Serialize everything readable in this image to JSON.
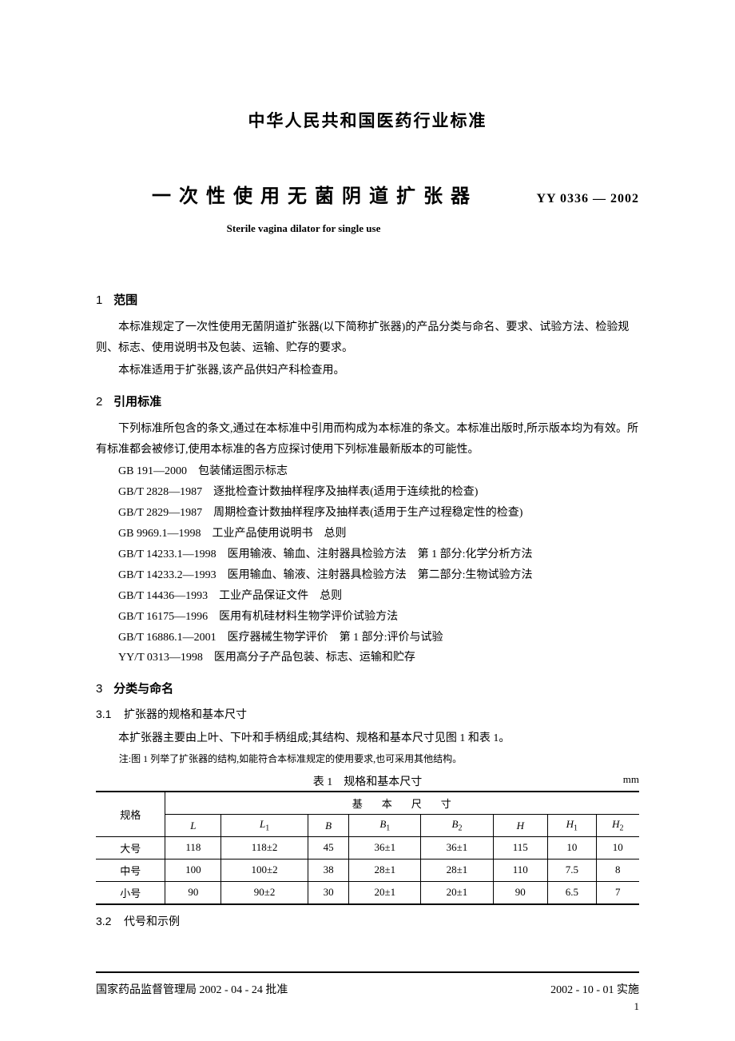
{
  "header": {
    "org_title": "中华人民共和国医药行业标准",
    "main_title": "一次性使用无菌阴道扩张器",
    "standard_code": "YY  0336 — 2002",
    "subtitle_en": "Sterile vagina dilator for single use"
  },
  "section1": {
    "num": "1",
    "label": "范围",
    "p1": "本标准规定了一次性使用无菌阴道扩张器(以下简称扩张器)的产品分类与命名、要求、试验方法、检验规则、标志、使用说明书及包装、运输、贮存的要求。",
    "p2": "本标准适用于扩张器,该产品供妇产科检查用。"
  },
  "section2": {
    "num": "2",
    "label": "引用标准",
    "intro": "下列标准所包含的条文,通过在本标准中引用而构成为本标准的条文。本标准出版时,所示版本均为有效。所有标准都会被修订,使用本标准的各方应探讨使用下列标准最新版本的可能性。",
    "refs": [
      "GB 191—2000　包装储运图示标志",
      "GB/T 2828—1987　逐批检查计数抽样程序及抽样表(适用于连续批的检查)",
      "GB/T 2829—1987　周期检查计数抽样程序及抽样表(适用于生产过程稳定性的检查)",
      "GB 9969.1—1998　工业产品使用说明书　总则",
      "GB/T 14233.1—1998　医用输液、输血、注射器具检验方法　第 1 部分:化学分析方法",
      "GB/T 14233.2—1993　医用输血、输液、注射器具检验方法　第二部分:生物试验方法",
      "GB/T 14436—1993　工业产品保证文件　总则",
      "GB/T 16175—1996　医用有机硅材料生物学评价试验方法",
      "GB/T 16886.1—2001　医疗器械生物学评价　第 1 部分:评价与试验",
      "YY/T 0313—1998　医用高分子产品包装、标志、运输和贮存"
    ]
  },
  "section3": {
    "num": "3",
    "label": "分类与命名",
    "sub1_num": "3.1",
    "sub1_label": "扩张器的规格和基本尺寸",
    "sub1_p1": "本扩张器主要由上叶、下叶和手柄组成;其结构、规格和基本尺寸见图 1 和表 1。",
    "sub1_note": "注:图 1 列举了扩张器的结构,如能符合本标准规定的使用要求,也可采用其他结构。",
    "sub2_num": "3.2",
    "sub2_label": "代号和示例"
  },
  "table1": {
    "caption": "表 1　规格和基本尺寸",
    "unit": "mm",
    "header1_col1": "规格",
    "header1_group": "基本尺寸",
    "cols": [
      "L",
      "L₁",
      "B",
      "B₁",
      "B₂",
      "H",
      "H₁",
      "H₂"
    ],
    "rows": [
      {
        "spec": "大号",
        "vals": [
          "118",
          "118±2",
          "45",
          "36±1",
          "36±1",
          "115",
          "10",
          "10"
        ]
      },
      {
        "spec": "中号",
        "vals": [
          "100",
          "100±2",
          "38",
          "28±1",
          "28±1",
          "110",
          "7.5",
          "8"
        ]
      },
      {
        "spec": "小号",
        "vals": [
          "90",
          "90±2",
          "30",
          "20±1",
          "20±1",
          "90",
          "6.5",
          "7"
        ]
      }
    ]
  },
  "footer": {
    "left": "国家药品监督管理局 2002 - 04 - 24 批准",
    "right": "2002 - 10 - 01 实施",
    "page": "1"
  },
  "style": {
    "text_color": "#000000",
    "bg_color": "#ffffff",
    "body_fontsize": 14,
    "title_fontsize": 24
  }
}
